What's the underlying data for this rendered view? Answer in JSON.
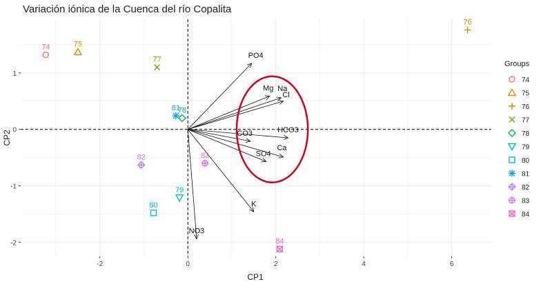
{
  "chart_data": {
    "type": "scatter",
    "title": "Variación iónica de la Cuenca del río Copalita",
    "xlabel": "CP1",
    "ylabel": "CP2",
    "xlim": [
      -3.8,
      6.9
    ],
    "ylim": [
      -2.25,
      1.95
    ],
    "xticks": [
      -2,
      0,
      2,
      4,
      6
    ],
    "yticks": [
      1,
      0,
      -1,
      -2
    ],
    "grid": true,
    "legend": {
      "title": "Groups",
      "placement": "right"
    },
    "points": [
      {
        "label": "74",
        "x": -3.23,
        "y": 1.32,
        "color": "#F8766D",
        "shape": "circle"
      },
      {
        "label": "75",
        "x": -2.5,
        "y": 1.37,
        "color": "#DB8E00",
        "shape": "triangle"
      },
      {
        "label": "76",
        "x": 6.36,
        "y": 1.76,
        "color": "#AEA200",
        "shape": "plus"
      },
      {
        "label": "77",
        "x": -0.7,
        "y": 1.1,
        "color": "#64B200",
        "shape": "cross"
      },
      {
        "label": "78",
        "x": -0.13,
        "y": 0.2,
        "color": "#00BD5C",
        "shape": "diamond"
      },
      {
        "label": "79",
        "x": -0.19,
        "y": -1.21,
        "color": "#00C1A7",
        "shape": "triangle-down"
      },
      {
        "label": "80",
        "x": -0.78,
        "y": -1.48,
        "color": "#00BADE",
        "shape": "square"
      },
      {
        "label": "81",
        "x": -0.27,
        "y": 0.24,
        "color": "#00A6FF",
        "shape": "asterisk"
      },
      {
        "label": "82",
        "x": -1.06,
        "y": -0.63,
        "color": "#B385FF",
        "shape": "diamond-plus"
      },
      {
        "label": "83",
        "x": 0.39,
        "y": -0.6,
        "color": "#EF67EB",
        "shape": "circle-plus"
      },
      {
        "label": "84",
        "x": 2.09,
        "y": -2.12,
        "color": "#FF63B6",
        "shape": "square-cross"
      }
    ],
    "loadings": [
      {
        "label": "PO4",
        "x": 1.45,
        "y": 1.17
      },
      {
        "label": "Mg",
        "x": 1.86,
        "y": 0.59
      },
      {
        "label": "Na",
        "x": 2.12,
        "y": 0.56
      },
      {
        "label": "Cl",
        "x": 2.17,
        "y": 0.5
      },
      {
        "label": "HCO3",
        "x": 2.28,
        "y": -0.15
      },
      {
        "label": "CO3",
        "x": 1.42,
        "y": -0.21
      },
      {
        "label": "SO4",
        "x": 1.78,
        "y": -0.57
      },
      {
        "label": "Ca",
        "x": 2.17,
        "y": -0.49
      },
      {
        "label": "K",
        "x": 1.5,
        "y": -1.46
      },
      {
        "label": "NO3",
        "x": 0.2,
        "y": -1.94
      }
    ],
    "highlight_ellipse": {
      "cx": 1.92,
      "cy": 0.0,
      "rx": 0.81,
      "ry": 0.94,
      "color": "#D0021B"
    }
  }
}
